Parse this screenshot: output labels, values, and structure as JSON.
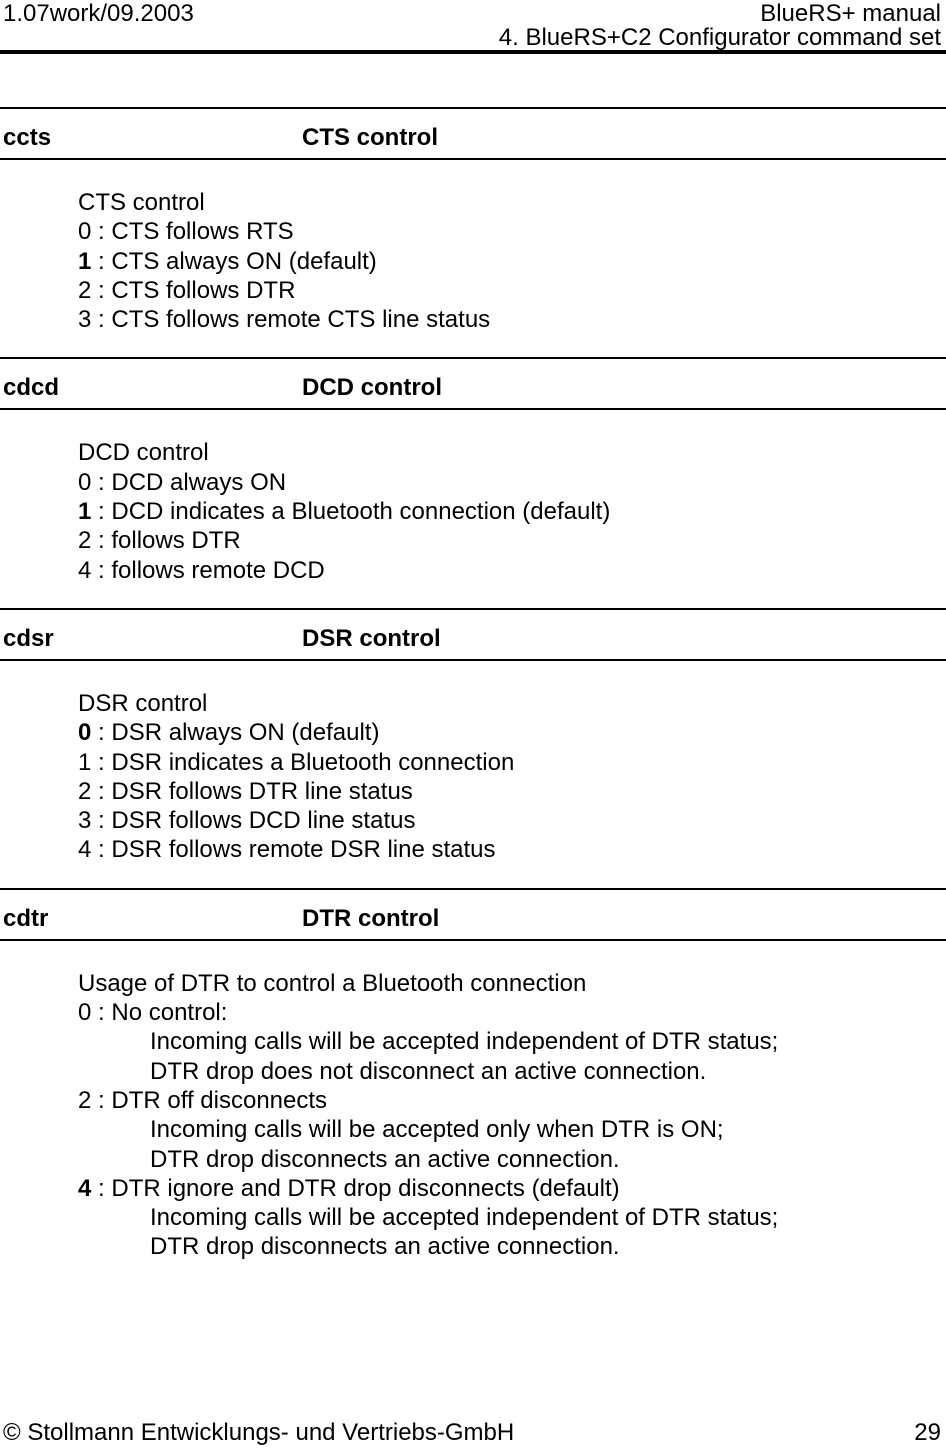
{
  "header": {
    "version": "1.07work/09.2003",
    "manual_title": "BlueRS+ manual",
    "chapter_title": "4. BlueRS+C2 Configurator command set"
  },
  "separator": " : ",
  "sections": [
    {
      "command": "ccts",
      "title": "CTS control",
      "lines": [
        {
          "text": "CTS control"
        },
        {
          "value": "0",
          "text": "CTS follows RTS"
        },
        {
          "value": "1",
          "bold": true,
          "text": "CTS always ON (default)"
        },
        {
          "value": "2",
          "text": "CTS follows DTR"
        },
        {
          "value": "3",
          "text": "CTS follows remote CTS line status"
        }
      ]
    },
    {
      "command": "cdcd",
      "title": "DCD control",
      "lines": [
        {
          "text": "DCD control"
        },
        {
          "value": "0",
          "text": "DCD always ON"
        },
        {
          "value": "1",
          "bold": true,
          "text": "DCD indicates a Bluetooth connection (default)"
        },
        {
          "value": "2",
          "text": "follows DTR"
        },
        {
          "value": "4",
          "text": "follows remote DCD"
        }
      ]
    },
    {
      "command": "cdsr",
      "title": "DSR control",
      "lines": [
        {
          "text": "DSR control"
        },
        {
          "value": "0",
          "bold": true,
          "text": "DSR always ON (default)"
        },
        {
          "value": "1",
          "text": "DSR indicates a Bluetooth connection"
        },
        {
          "value": "2",
          "text": "DSR follows DTR line status"
        },
        {
          "value": "3",
          "text": "DSR follows DCD line status"
        },
        {
          "value": "4",
          "text": "DSR follows remote DSR line status"
        }
      ]
    },
    {
      "command": "cdtr",
      "title": "DTR control",
      "lines": [
        {
          "text": "Usage of DTR to control a Bluetooth connection"
        },
        {
          "value": "0",
          "text": "No control:"
        },
        {
          "indent": 2,
          "text": "Incoming calls will be accepted independent of DTR status;"
        },
        {
          "indent": 2,
          "text": "DTR drop does not disconnect an active connection."
        },
        {
          "value": "2",
          "text": "DTR off disconnects"
        },
        {
          "indent": 2,
          "text": "Incoming calls will be accepted only when DTR is ON;"
        },
        {
          "indent": 2,
          "text": "DTR drop disconnects an active connection."
        },
        {
          "value": "4",
          "bold": true,
          "text": "DTR ignore and DTR drop disconnects (default)"
        },
        {
          "indent": 2,
          "text": "Incoming calls will be accepted independent of DTR status;"
        },
        {
          "indent": 2,
          "text": "DTR drop disconnects an active connection."
        }
      ]
    }
  ],
  "footer": {
    "copyright": "© Stollmann Entwicklungs- und Vertriebs-GmbH",
    "page_number": "29"
  },
  "colors": {
    "text": "#000000",
    "background": "#ffffff",
    "rule": "#000000"
  }
}
